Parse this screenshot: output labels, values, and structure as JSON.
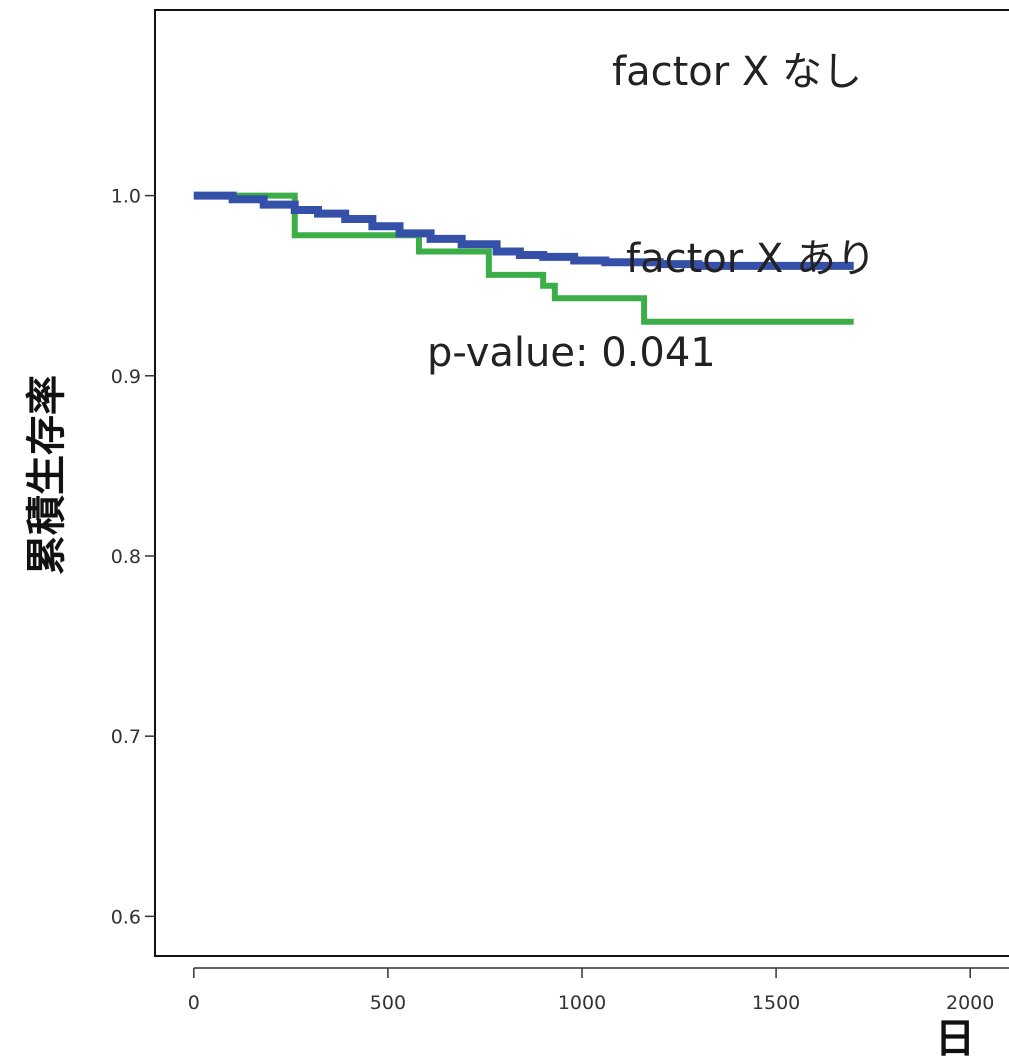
{
  "chart_data": {
    "type": "line",
    "subtype": "kaplan-meier step",
    "title": "",
    "xlabel": "日",
    "ylabel": "累積生存率",
    "xlim": [
      -100,
      2100
    ],
    "ylim": [
      0.578,
      1.103
    ],
    "x_ticks": [
      0,
      500,
      1000,
      1500,
      2000
    ],
    "x_tick_labels": [
      "0",
      "500",
      "1000",
      "1500",
      "2000"
    ],
    "y_ticks": [
      0.6,
      0.7,
      0.8,
      0.9,
      1.0
    ],
    "y_tick_labels": [
      "0.6",
      "0.7",
      "0.8",
      "0.9",
      "1.0"
    ],
    "grid": false,
    "annotations": {
      "label_without": "factor X  なし",
      "label_with": "factor X あり",
      "p_value": "p-value: 0.041"
    },
    "series": [
      {
        "name": "factor X  なし",
        "color": "#3550a8",
        "x": [
          0,
          100,
          180,
          260,
          320,
          390,
          460,
          530,
          610,
          690,
          780,
          840,
          900,
          980,
          1060,
          1200,
          1300,
          1700
        ],
        "y": [
          1.0,
          0.998,
          0.995,
          0.992,
          0.99,
          0.987,
          0.983,
          0.979,
          0.976,
          0.973,
          0.969,
          0.967,
          0.966,
          0.964,
          0.963,
          0.962,
          0.961,
          0.961
        ]
      },
      {
        "name": "factor X あり",
        "color": "#3cae48",
        "x": [
          0,
          260,
          580,
          760,
          900,
          930,
          1160,
          1700
        ],
        "y": [
          1.0,
          0.978,
          0.969,
          0.956,
          0.95,
          0.943,
          0.93,
          0.93
        ]
      }
    ]
  }
}
